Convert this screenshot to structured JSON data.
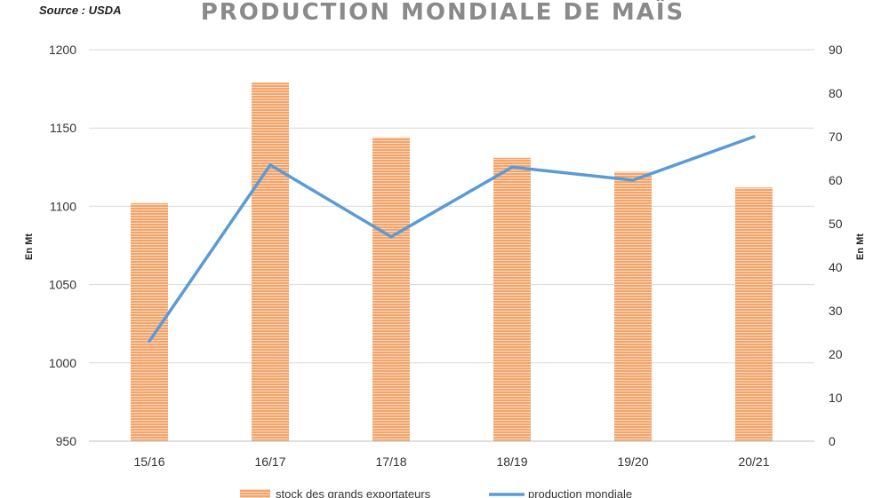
{
  "chart_data": {
    "type": "bar",
    "title": "PRODUCTION MONDIALE DE MAÏS",
    "source": "Source : USDA",
    "categories": [
      "15/16",
      "16/17",
      "17/18",
      "18/19",
      "19/20",
      "20/21"
    ],
    "series": [
      {
        "name": "stock des grands exportateurs",
        "type": "bar",
        "axis": "left",
        "color": "#f4a46a",
        "values": [
          1102,
          1179,
          1144,
          1131,
          1122,
          1112
        ]
      },
      {
        "name": "production mondiale",
        "type": "line",
        "axis": "right",
        "color": "#5b9bd5",
        "values": [
          23,
          63.5,
          47,
          63,
          60,
          70
        ]
      }
    ],
    "y_left": {
      "label": "En Mt",
      "min": 950,
      "max": 1200,
      "step": 50,
      "ticks": [
        "950",
        "1000",
        "1050",
        "1100",
        "1150",
        "1200"
      ]
    },
    "y_right": {
      "label": "En Mt",
      "min": 0,
      "max": 90,
      "step": 10,
      "ticks": [
        "0",
        "10",
        "20",
        "30",
        "40",
        "50",
        "60",
        "70",
        "80",
        "90"
      ]
    },
    "grid": true,
    "legend_position": "bottom"
  }
}
